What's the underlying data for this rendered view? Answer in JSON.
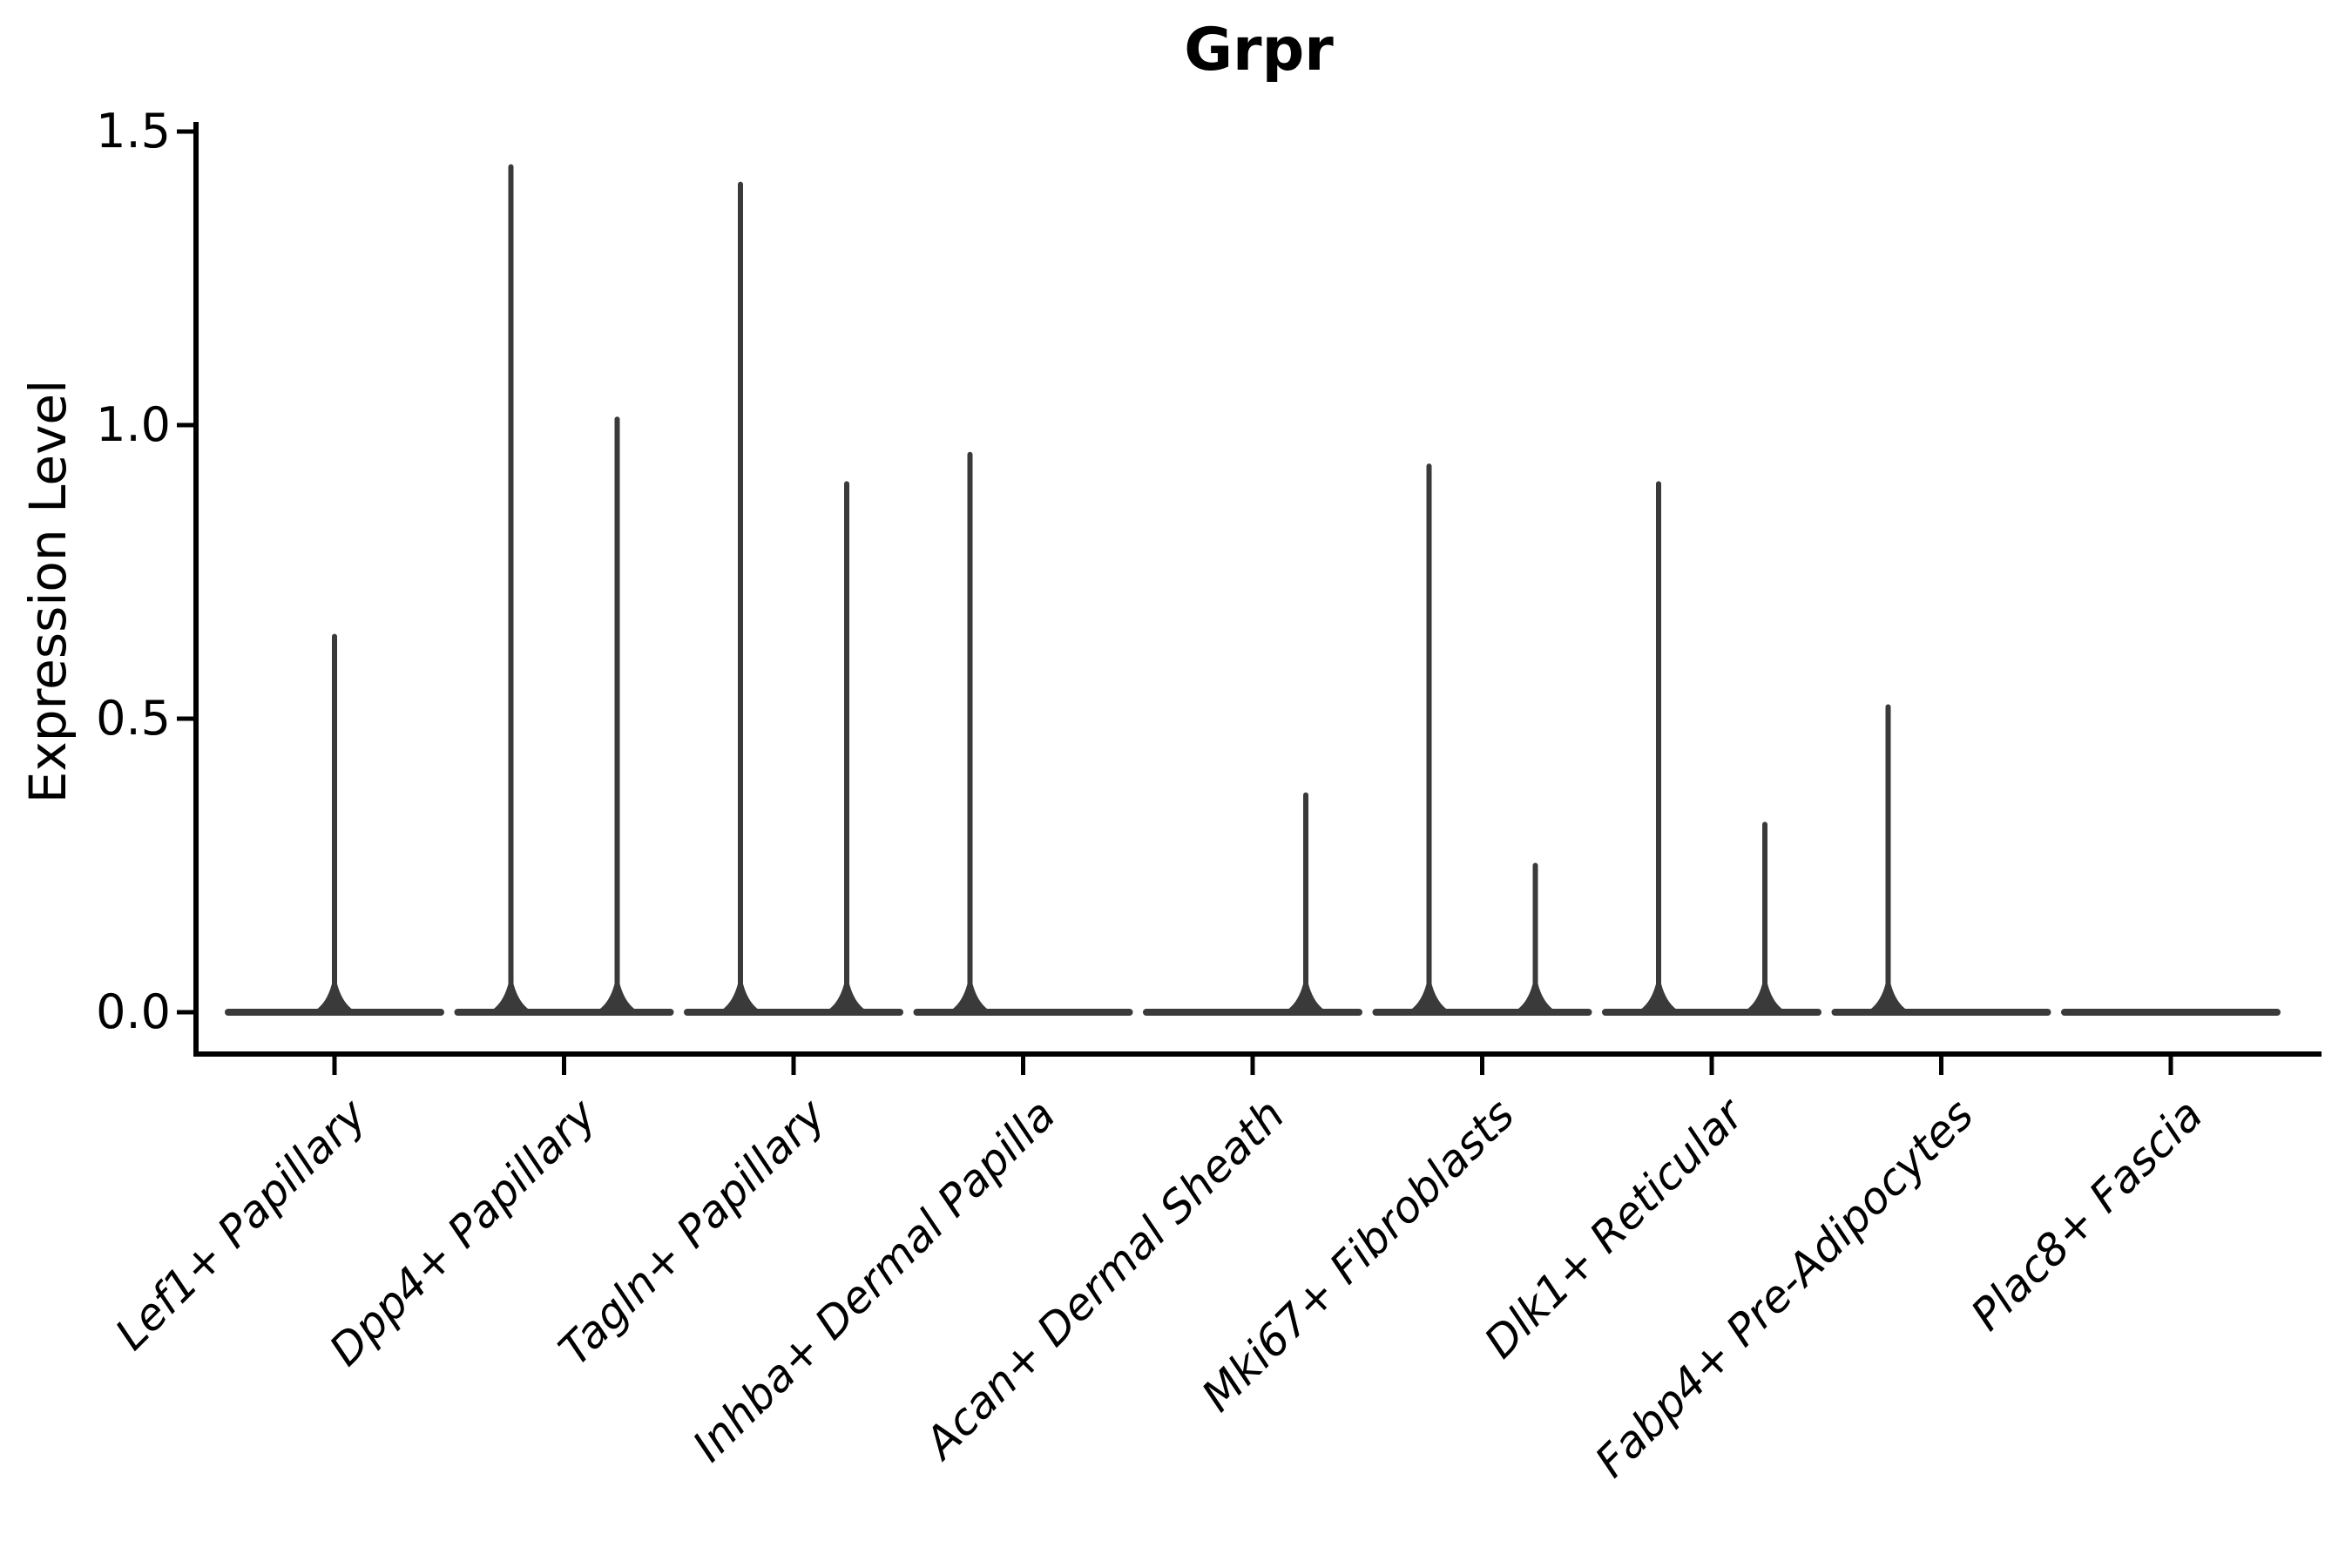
{
  "chart_data": {
    "type": "violin",
    "title": "Grpr",
    "xlabel": "",
    "ylabel": "Expression Level",
    "ylim": [
      0,
      1.5
    ],
    "yticks": [
      0.0,
      0.5,
      1.0,
      1.5
    ],
    "ytick_labels": [
      "0.0",
      "0.5",
      "1.0",
      "1.5"
    ],
    "grid": false,
    "legend": "none",
    "categories": [
      "Lef1+ Papillary",
      "Dpp4+ Papillary",
      "Tagln+ Papillary",
      "Inhba+ Dermal Papilla",
      "Acan+ Dermal Sheath",
      "Mki67+ Fibroblasts",
      "Dlk1+ Reticular",
      "Fabp4+ Pre-Adipocytes",
      "Plac8+ Fascia"
    ],
    "violins": [
      {
        "category": "Lef1+ Papillary",
        "spikes": [
          {
            "pos": "center",
            "max": 0.64
          }
        ]
      },
      {
        "category": "Dpp4+ Papillary",
        "spikes": [
          {
            "pos": "left",
            "max": 1.44
          },
          {
            "pos": "right",
            "max": 1.01
          }
        ]
      },
      {
        "category": "Tagln+ Papillary",
        "spikes": [
          {
            "pos": "left",
            "max": 1.41
          },
          {
            "pos": "right",
            "max": 0.9
          }
        ]
      },
      {
        "category": "Inhba+ Dermal Papilla",
        "spikes": [
          {
            "pos": "left",
            "max": 0.95
          }
        ]
      },
      {
        "category": "Acan+ Dermal Sheath",
        "spikes": [
          {
            "pos": "right",
            "max": 0.37
          }
        ]
      },
      {
        "category": "Mki67+ Fibroblasts",
        "spikes": [
          {
            "pos": "left",
            "max": 0.93
          },
          {
            "pos": "right",
            "max": 0.25
          }
        ]
      },
      {
        "category": "Dlk1+ Reticular",
        "spikes": [
          {
            "pos": "left",
            "max": 0.9
          },
          {
            "pos": "right",
            "max": 0.32
          }
        ]
      },
      {
        "category": "Fabp4+ Pre-Adipocytes",
        "spikes": [
          {
            "pos": "left",
            "max": 0.52
          }
        ]
      },
      {
        "category": "Plac8+ Fascia",
        "spikes": []
      }
    ],
    "baseline_value": 0.0,
    "colors": {
      "violin_stroke": "#3a3a3a",
      "axis": "#000000",
      "text": "#000000",
      "background": "#ffffff"
    }
  }
}
